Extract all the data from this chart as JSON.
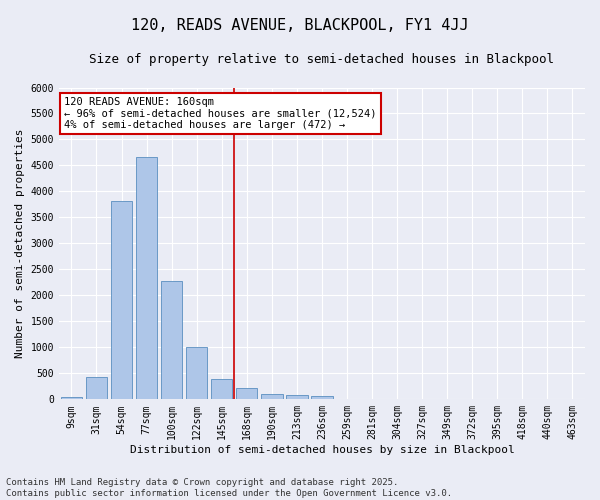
{
  "title": "120, READS AVENUE, BLACKPOOL, FY1 4JJ",
  "subtitle": "Size of property relative to semi-detached houses in Blackpool",
  "xlabel": "Distribution of semi-detached houses by size in Blackpool",
  "ylabel": "Number of semi-detached properties",
  "bar_labels": [
    "9sqm",
    "31sqm",
    "54sqm",
    "77sqm",
    "100sqm",
    "122sqm",
    "145sqm",
    "168sqm",
    "190sqm",
    "213sqm",
    "236sqm",
    "259sqm",
    "281sqm",
    "304sqm",
    "327sqm",
    "349sqm",
    "372sqm",
    "395sqm",
    "418sqm",
    "440sqm",
    "463sqm"
  ],
  "bar_values": [
    50,
    430,
    3820,
    4670,
    2280,
    1000,
    400,
    210,
    100,
    75,
    60,
    0,
    0,
    0,
    0,
    0,
    0,
    0,
    0,
    0,
    0
  ],
  "bar_color": "#aec6e8",
  "bar_edge_color": "#5a8fc0",
  "vline_color": "#cc0000",
  "vline_x_index": 6.5,
  "ylim": [
    0,
    6000
  ],
  "yticks": [
    0,
    500,
    1000,
    1500,
    2000,
    2500,
    3000,
    3500,
    4000,
    4500,
    5000,
    5500,
    6000
  ],
  "annotation_line1": "120 READS AVENUE: 160sqm",
  "annotation_line2": "← 96% of semi-detached houses are smaller (12,524)",
  "annotation_line3": "4% of semi-detached houses are larger (472) →",
  "annotation_box_color": "#cc0000",
  "annotation_fill": "#ffffff",
  "footer_line1": "Contains HM Land Registry data © Crown copyright and database right 2025.",
  "footer_line2": "Contains public sector information licensed under the Open Government Licence v3.0.",
  "background_color": "#eaecf5",
  "grid_color": "#ffffff",
  "title_fontsize": 11,
  "subtitle_fontsize": 9,
  "axis_label_fontsize": 8,
  "tick_fontsize": 7,
  "annotation_fontsize": 7.5,
  "footer_fontsize": 6.5
}
